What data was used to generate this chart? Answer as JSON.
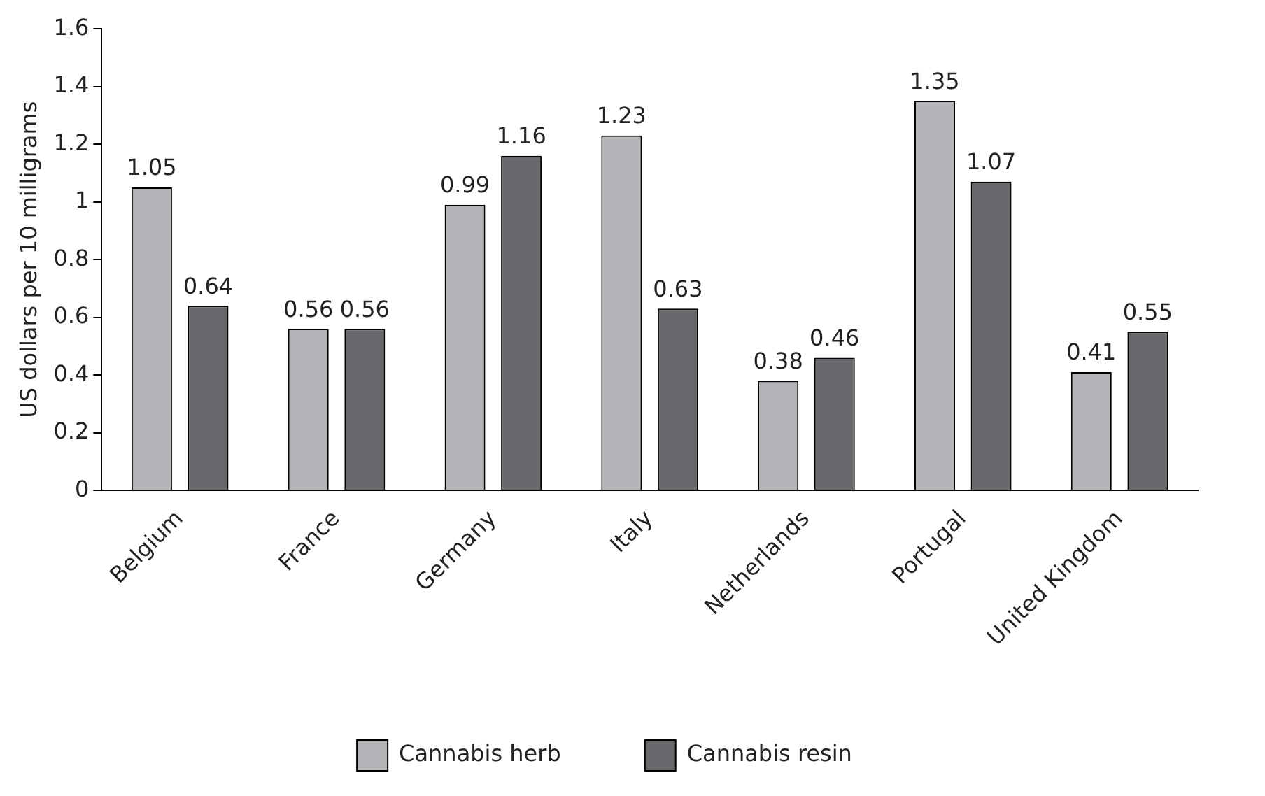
{
  "chart_data": {
    "type": "bar",
    "ylabel": "US dollars per 10 milligrams",
    "categories": [
      "Belgium",
      "France",
      "Germany",
      "Italy",
      "Netherlands",
      "Portugal",
      "United Kingdom"
    ],
    "series": [
      {
        "name": "Cannabis herb",
        "color": "#b4b5b9",
        "values": [
          1.05,
          0.56,
          0.99,
          1.23,
          0.38,
          1.35,
          0.41
        ]
      },
      {
        "name": "Cannabis resin",
        "color": "#68696d",
        "values": [
          0.64,
          0.56,
          1.16,
          0.63,
          0.46,
          1.07,
          0.55
        ]
      }
    ],
    "ylim": [
      0,
      1.6
    ],
    "yticks": [
      0,
      0.2,
      0.4,
      0.6,
      0.8,
      1,
      1.2,
      1.4,
      1.6
    ],
    "grid": false,
    "legend": "bottom",
    "data_labels": true
  }
}
